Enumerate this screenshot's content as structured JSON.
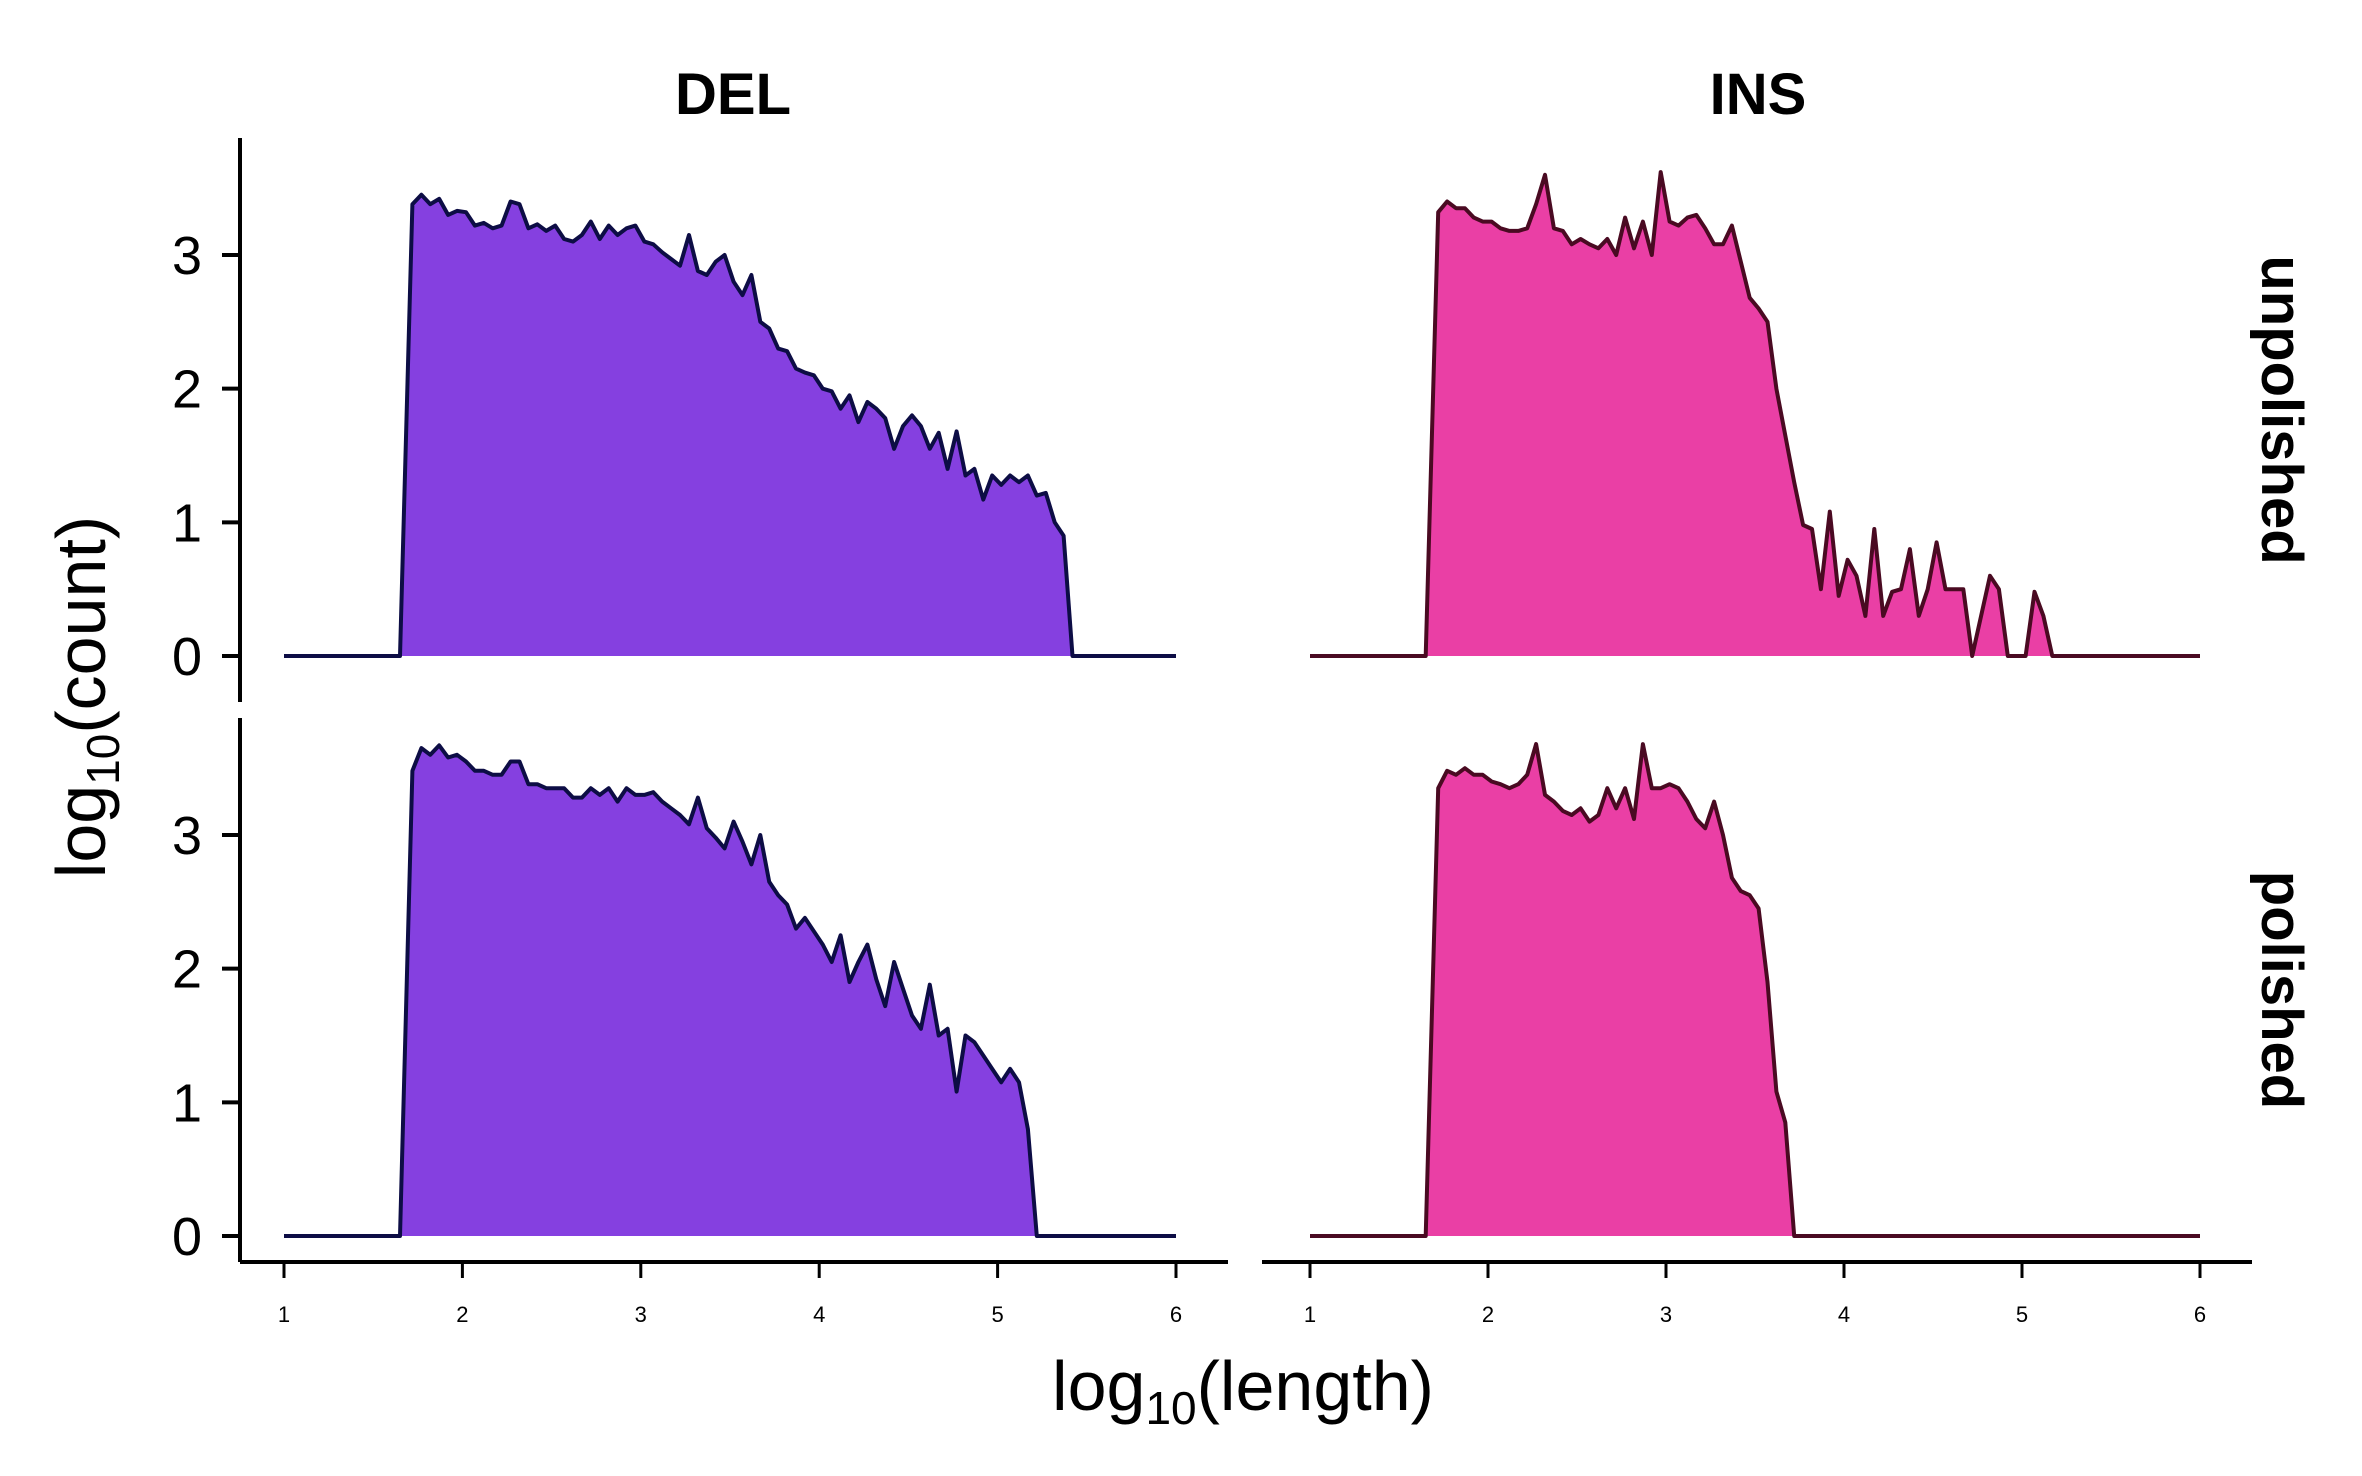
{
  "chart_data": {
    "type": "area",
    "xlabel": {
      "prefix": "log",
      "subscript": "10",
      "inner": "length"
    },
    "ylabel": {
      "prefix": "log",
      "subscript": "10",
      "inner": "count"
    },
    "xlim": [
      1,
      6
    ],
    "ylim": [
      0,
      3.7
    ],
    "xticks": [
      "1",
      "2",
      "3",
      "4",
      "5",
      "6"
    ],
    "yticks": [
      "0",
      "1",
      "2",
      "3"
    ],
    "columns": [
      "DEL",
      "INS"
    ],
    "rows": [
      "unpolished",
      "polished"
    ],
    "colors": {
      "DEL": {
        "fill": "#8540E0",
        "stroke": "#0D0D45"
      },
      "INS": {
        "fill": "#EA3FA5",
        "stroke": "#4A0A22"
      }
    },
    "panels": [
      {
        "col": "DEL",
        "row": "unpolished",
        "x": [
          1,
          1.65,
          1.72,
          1.77,
          1.82,
          1.87,
          1.92,
          1.97,
          2.02,
          2.07,
          2.12,
          2.17,
          2.22,
          2.27,
          2.32,
          2.37,
          2.42,
          2.47,
          2.52,
          2.57,
          2.62,
          2.67,
          2.72,
          2.77,
          2.82,
          2.87,
          2.92,
          2.97,
          3.02,
          3.07,
          3.12,
          3.17,
          3.22,
          3.27,
          3.32,
          3.37,
          3.42,
          3.47,
          3.52,
          3.57,
          3.62,
          3.67,
          3.72,
          3.77,
          3.82,
          3.87,
          3.92,
          3.97,
          4.02,
          4.07,
          4.12,
          4.17,
          4.22,
          4.27,
          4.32,
          4.37,
          4.42,
          4.47,
          4.52,
          4.57,
          4.62,
          4.67,
          4.72,
          4.77,
          4.82,
          4.87,
          4.92,
          4.97,
          5.02,
          5.07,
          5.12,
          5.17,
          5.22,
          5.27,
          5.32,
          5.37,
          5.42,
          5.47,
          5.52,
          5.57,
          5.62,
          5.67,
          5.72,
          5.77,
          6
        ],
        "y": [
          0,
          0,
          3.38,
          3.45,
          3.38,
          3.42,
          3.3,
          3.33,
          3.32,
          3.22,
          3.24,
          3.2,
          3.22,
          3.4,
          3.38,
          3.2,
          3.23,
          3.18,
          3.22,
          3.12,
          3.1,
          3.15,
          3.25,
          3.12,
          3.22,
          3.15,
          3.2,
          3.22,
          3.1,
          3.08,
          3.02,
          2.97,
          2.92,
          3.15,
          2.88,
          2.85,
          2.95,
          3.0,
          2.8,
          2.7,
          2.85,
          2.5,
          2.45,
          2.3,
          2.28,
          2.15,
          2.12,
          2.1,
          2.0,
          1.98,
          1.85,
          1.95,
          1.75,
          1.9,
          1.85,
          1.78,
          1.55,
          1.72,
          1.8,
          1.72,
          1.55,
          1.67,
          1.4,
          1.68,
          1.35,
          1.4,
          1.17,
          1.35,
          1.28,
          1.35,
          1.3,
          1.35,
          1.2,
          1.22,
          1.0,
          0.9,
          0.0,
          0,
          0,
          0,
          0,
          0,
          0,
          0,
          0
        ]
      },
      {
        "col": "INS",
        "row": "unpolished",
        "x": [
          1,
          1.65,
          1.72,
          1.77,
          1.82,
          1.87,
          1.92,
          1.97,
          2.02,
          2.07,
          2.12,
          2.17,
          2.22,
          2.27,
          2.32,
          2.37,
          2.42,
          2.47,
          2.52,
          2.57,
          2.62,
          2.67,
          2.72,
          2.77,
          2.82,
          2.87,
          2.92,
          2.97,
          3.02,
          3.07,
          3.12,
          3.17,
          3.22,
          3.27,
          3.32,
          3.37,
          3.42,
          3.47,
          3.52,
          3.57,
          3.62,
          3.67,
          3.72,
          3.77,
          3.82,
          3.87,
          3.92,
          3.97,
          4.02,
          4.07,
          4.12,
          4.17,
          4.22,
          4.27,
          4.32,
          4.37,
          4.42,
          4.47,
          4.52,
          4.57,
          4.62,
          4.67,
          4.72,
          4.77,
          4.82,
          4.87,
          4.92,
          4.97,
          5.02,
          5.07,
          5.12,
          5.17,
          5.22,
          5.27,
          5.32,
          5.37,
          5.42,
          5.47,
          5.52,
          6
        ],
        "y": [
          0,
          0,
          3.32,
          3.4,
          3.35,
          3.35,
          3.28,
          3.25,
          3.25,
          3.2,
          3.18,
          3.18,
          3.2,
          3.38,
          3.6,
          3.2,
          3.18,
          3.08,
          3.12,
          3.08,
          3.05,
          3.12,
          3.0,
          3.28,
          3.05,
          3.25,
          3.0,
          3.62,
          3.25,
          3.22,
          3.28,
          3.3,
          3.2,
          3.08,
          3.08,
          3.22,
          2.95,
          2.68,
          2.6,
          2.5,
          2.0,
          1.65,
          1.3,
          0.98,
          0.95,
          0.5,
          1.08,
          0.45,
          0.72,
          0.6,
          0.3,
          0.95,
          0.3,
          0.48,
          0.5,
          0.8,
          0.3,
          0.5,
          0.85,
          0.5,
          0.5,
          0.5,
          0.0,
          0.3,
          0.6,
          0.5,
          0.0,
          0.0,
          0.0,
          0.48,
          0.3,
          0.0,
          0,
          0,
          0,
          0,
          0,
          0,
          0,
          0
        ]
      },
      {
        "col": "DEL",
        "row": "polished",
        "x": [
          1,
          1.65,
          1.72,
          1.77,
          1.82,
          1.87,
          1.92,
          1.97,
          2.02,
          2.07,
          2.12,
          2.17,
          2.22,
          2.27,
          2.32,
          2.37,
          2.42,
          2.47,
          2.52,
          2.57,
          2.62,
          2.67,
          2.72,
          2.77,
          2.82,
          2.87,
          2.92,
          2.97,
          3.02,
          3.07,
          3.12,
          3.17,
          3.22,
          3.27,
          3.32,
          3.37,
          3.42,
          3.47,
          3.52,
          3.57,
          3.62,
          3.67,
          3.72,
          3.77,
          3.82,
          3.87,
          3.92,
          3.97,
          4.02,
          4.07,
          4.12,
          4.17,
          4.22,
          4.27,
          4.32,
          4.37,
          4.42,
          4.47,
          4.52,
          4.57,
          4.62,
          4.67,
          4.72,
          4.77,
          4.82,
          4.87,
          4.92,
          4.97,
          5.02,
          5.07,
          5.12,
          5.17,
          5.22,
          5.27,
          5.32,
          5.37,
          5.42,
          5.47,
          5.52,
          5.57,
          5.62,
          5.67,
          5.72,
          5.77,
          6
        ],
        "y": [
          0,
          0,
          3.48,
          3.65,
          3.6,
          3.67,
          3.58,
          3.6,
          3.55,
          3.48,
          3.48,
          3.45,
          3.45,
          3.55,
          3.55,
          3.38,
          3.38,
          3.35,
          3.35,
          3.35,
          3.28,
          3.28,
          3.35,
          3.3,
          3.35,
          3.25,
          3.35,
          3.3,
          3.3,
          3.32,
          3.25,
          3.2,
          3.15,
          3.08,
          3.28,
          3.05,
          2.98,
          2.9,
          3.1,
          2.95,
          2.78,
          3.0,
          2.65,
          2.55,
          2.48,
          2.3,
          2.38,
          2.28,
          2.18,
          2.05,
          2.25,
          1.9,
          2.05,
          2.18,
          1.92,
          1.72,
          2.05,
          1.85,
          1.65,
          1.55,
          1.88,
          1.5,
          1.55,
          1.08,
          1.5,
          1.45,
          1.35,
          1.25,
          1.15,
          1.25,
          1.15,
          0.8,
          0.0,
          0,
          0,
          0,
          0,
          0,
          0,
          0,
          0,
          0,
          0,
          0,
          0
        ]
      },
      {
        "col": "INS",
        "row": "polished",
        "x": [
          1,
          1.65,
          1.72,
          1.77,
          1.82,
          1.87,
          1.92,
          1.97,
          2.02,
          2.07,
          2.12,
          2.17,
          2.22,
          2.27,
          2.32,
          2.37,
          2.42,
          2.47,
          2.52,
          2.57,
          2.62,
          2.67,
          2.72,
          2.77,
          2.82,
          2.87,
          2.92,
          2.97,
          3.02,
          3.07,
          3.12,
          3.17,
          3.22,
          3.27,
          3.32,
          3.37,
          3.42,
          3.47,
          3.52,
          3.57,
          3.62,
          3.67,
          3.72,
          3.77,
          3.82,
          3.87,
          3.92,
          3.97,
          6
        ],
        "y": [
          0,
          0,
          3.35,
          3.48,
          3.45,
          3.5,
          3.45,
          3.45,
          3.4,
          3.38,
          3.35,
          3.38,
          3.45,
          3.68,
          3.3,
          3.25,
          3.18,
          3.15,
          3.2,
          3.1,
          3.15,
          3.35,
          3.2,
          3.35,
          3.12,
          3.68,
          3.35,
          3.35,
          3.38,
          3.35,
          3.25,
          3.12,
          3.05,
          3.25,
          3.0,
          2.68,
          2.58,
          2.55,
          2.45,
          1.9,
          1.08,
          0.85,
          0.0,
          0,
          0,
          0,
          0,
          0,
          0
        ]
      }
    ]
  }
}
